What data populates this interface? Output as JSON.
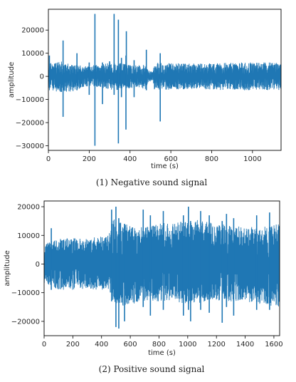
{
  "chart_data": [
    {
      "type": "line",
      "x_start": 0,
      "x_end": 1140,
      "xlim": [
        0,
        1140
      ],
      "ylim": [
        -32000,
        29000
      ],
      "xticks": [
        0,
        200,
        400,
        600,
        800,
        1000
      ],
      "yticks": [
        -30000,
        -20000,
        -10000,
        0,
        10000,
        20000
      ],
      "xlabel": "time (s)",
      "ylabel": "amplitude",
      "caption": "(1) Negative sound signal",
      "color": "#1f77b4",
      "grid": false,
      "envelope": [
        {
          "x": 0,
          "lo": -6000,
          "hi": 6000
        },
        {
          "x": 60,
          "lo": -7000,
          "hi": 6500
        },
        {
          "x": 120,
          "lo": -6500,
          "hi": 5000
        },
        {
          "x": 200,
          "lo": -4000,
          "hi": 4500
        },
        {
          "x": 320,
          "lo": -6000,
          "hi": 6000
        },
        {
          "x": 420,
          "lo": -5000,
          "hi": 5000
        },
        {
          "x": 480,
          "lo": -5500,
          "hi": 5000
        },
        {
          "x": 490,
          "lo": -2500,
          "hi": 2500
        },
        {
          "x": 510,
          "lo": -2000,
          "hi": 2000
        },
        {
          "x": 520,
          "lo": -6000,
          "hi": 6000
        },
        {
          "x": 700,
          "lo": -5500,
          "hi": 5500
        },
        {
          "x": 900,
          "lo": -6000,
          "hi": 6000
        },
        {
          "x": 1140,
          "lo": -6000,
          "hi": 6000
        }
      ],
      "spikes": [
        {
          "x": 5,
          "lo": -2000,
          "hi": 9000
        },
        {
          "x": 72,
          "lo": -17500,
          "hi": 15500
        },
        {
          "x": 140,
          "lo": -6000,
          "hi": 10000
        },
        {
          "x": 200,
          "lo": -8000,
          "hi": 6000
        },
        {
          "x": 228,
          "lo": -30000,
          "hi": 27000
        },
        {
          "x": 265,
          "lo": -12000,
          "hi": 6000
        },
        {
          "x": 300,
          "lo": -3000,
          "hi": 6500
        },
        {
          "x": 322,
          "lo": -8000,
          "hi": 27000
        },
        {
          "x": 343,
          "lo": -29000,
          "hi": 24500
        },
        {
          "x": 358,
          "lo": -9000,
          "hi": 8000
        },
        {
          "x": 380,
          "lo": -23000,
          "hi": 9000
        },
        {
          "x": 382,
          "lo": -5000,
          "hi": 19500
        },
        {
          "x": 420,
          "lo": -9000,
          "hi": 7000
        },
        {
          "x": 480,
          "lo": -6000,
          "hi": 11500
        },
        {
          "x": 548,
          "lo": -19500,
          "hi": 10000
        }
      ]
    },
    {
      "type": "line",
      "x_start": 0,
      "x_end": 1640,
      "xlim": [
        0,
        1640
      ],
      "ylim": [
        -25000,
        22000
      ],
      "xticks": [
        0,
        200,
        400,
        600,
        800,
        1000,
        1200,
        1400,
        1600
      ],
      "yticks": [
        -20000,
        -10000,
        0,
        10000,
        20000
      ],
      "xlabel": "time (s)",
      "ylabel": "amplitude",
      "caption": "(2) Positive sound signal",
      "color": "#1f77b4",
      "grid": false,
      "envelope": [
        {
          "x": 0,
          "lo": -7000,
          "hi": 7000
        },
        {
          "x": 100,
          "lo": -9000,
          "hi": 9000
        },
        {
          "x": 300,
          "lo": -9000,
          "hi": 9000
        },
        {
          "x": 450,
          "lo": -9000,
          "hi": 10000
        },
        {
          "x": 480,
          "lo": -13000,
          "hi": 16000
        },
        {
          "x": 550,
          "lo": -15000,
          "hi": 14000
        },
        {
          "x": 700,
          "lo": -13000,
          "hi": 13000
        },
        {
          "x": 900,
          "lo": -13000,
          "hi": 15000
        },
        {
          "x": 1000,
          "lo": -14000,
          "hi": 16000
        },
        {
          "x": 1200,
          "lo": -13000,
          "hi": 14000
        },
        {
          "x": 1400,
          "lo": -13000,
          "hi": 13000
        },
        {
          "x": 1500,
          "lo": -14000,
          "hi": 13000
        },
        {
          "x": 1640,
          "lo": -15000,
          "hi": 14000
        }
      ],
      "spikes": [
        {
          "x": 50,
          "lo": -9000,
          "hi": 12500
        },
        {
          "x": 470,
          "lo": -13000,
          "hi": 19000
        },
        {
          "x": 500,
          "lo": -22000,
          "hi": 20000
        },
        {
          "x": 520,
          "lo": -22500,
          "hi": 16000
        },
        {
          "x": 560,
          "lo": -20000,
          "hi": 14000
        },
        {
          "x": 690,
          "lo": -15000,
          "hi": 19000
        },
        {
          "x": 740,
          "lo": -18000,
          "hi": 17000
        },
        {
          "x": 830,
          "lo": -16000,
          "hi": 18500
        },
        {
          "x": 970,
          "lo": -18000,
          "hi": 17000
        },
        {
          "x": 1005,
          "lo": -16000,
          "hi": 20000
        },
        {
          "x": 1020,
          "lo": -20000,
          "hi": 15000
        },
        {
          "x": 1090,
          "lo": -16000,
          "hi": 18500
        },
        {
          "x": 1150,
          "lo": -17000,
          "hi": 17000
        },
        {
          "x": 1240,
          "lo": -20500,
          "hi": 15000
        },
        {
          "x": 1270,
          "lo": -15000,
          "hi": 17500
        },
        {
          "x": 1320,
          "lo": -18000,
          "hi": 16000
        },
        {
          "x": 1480,
          "lo": -16000,
          "hi": 17000
        },
        {
          "x": 1570,
          "lo": -16000,
          "hi": 18000
        }
      ]
    }
  ]
}
